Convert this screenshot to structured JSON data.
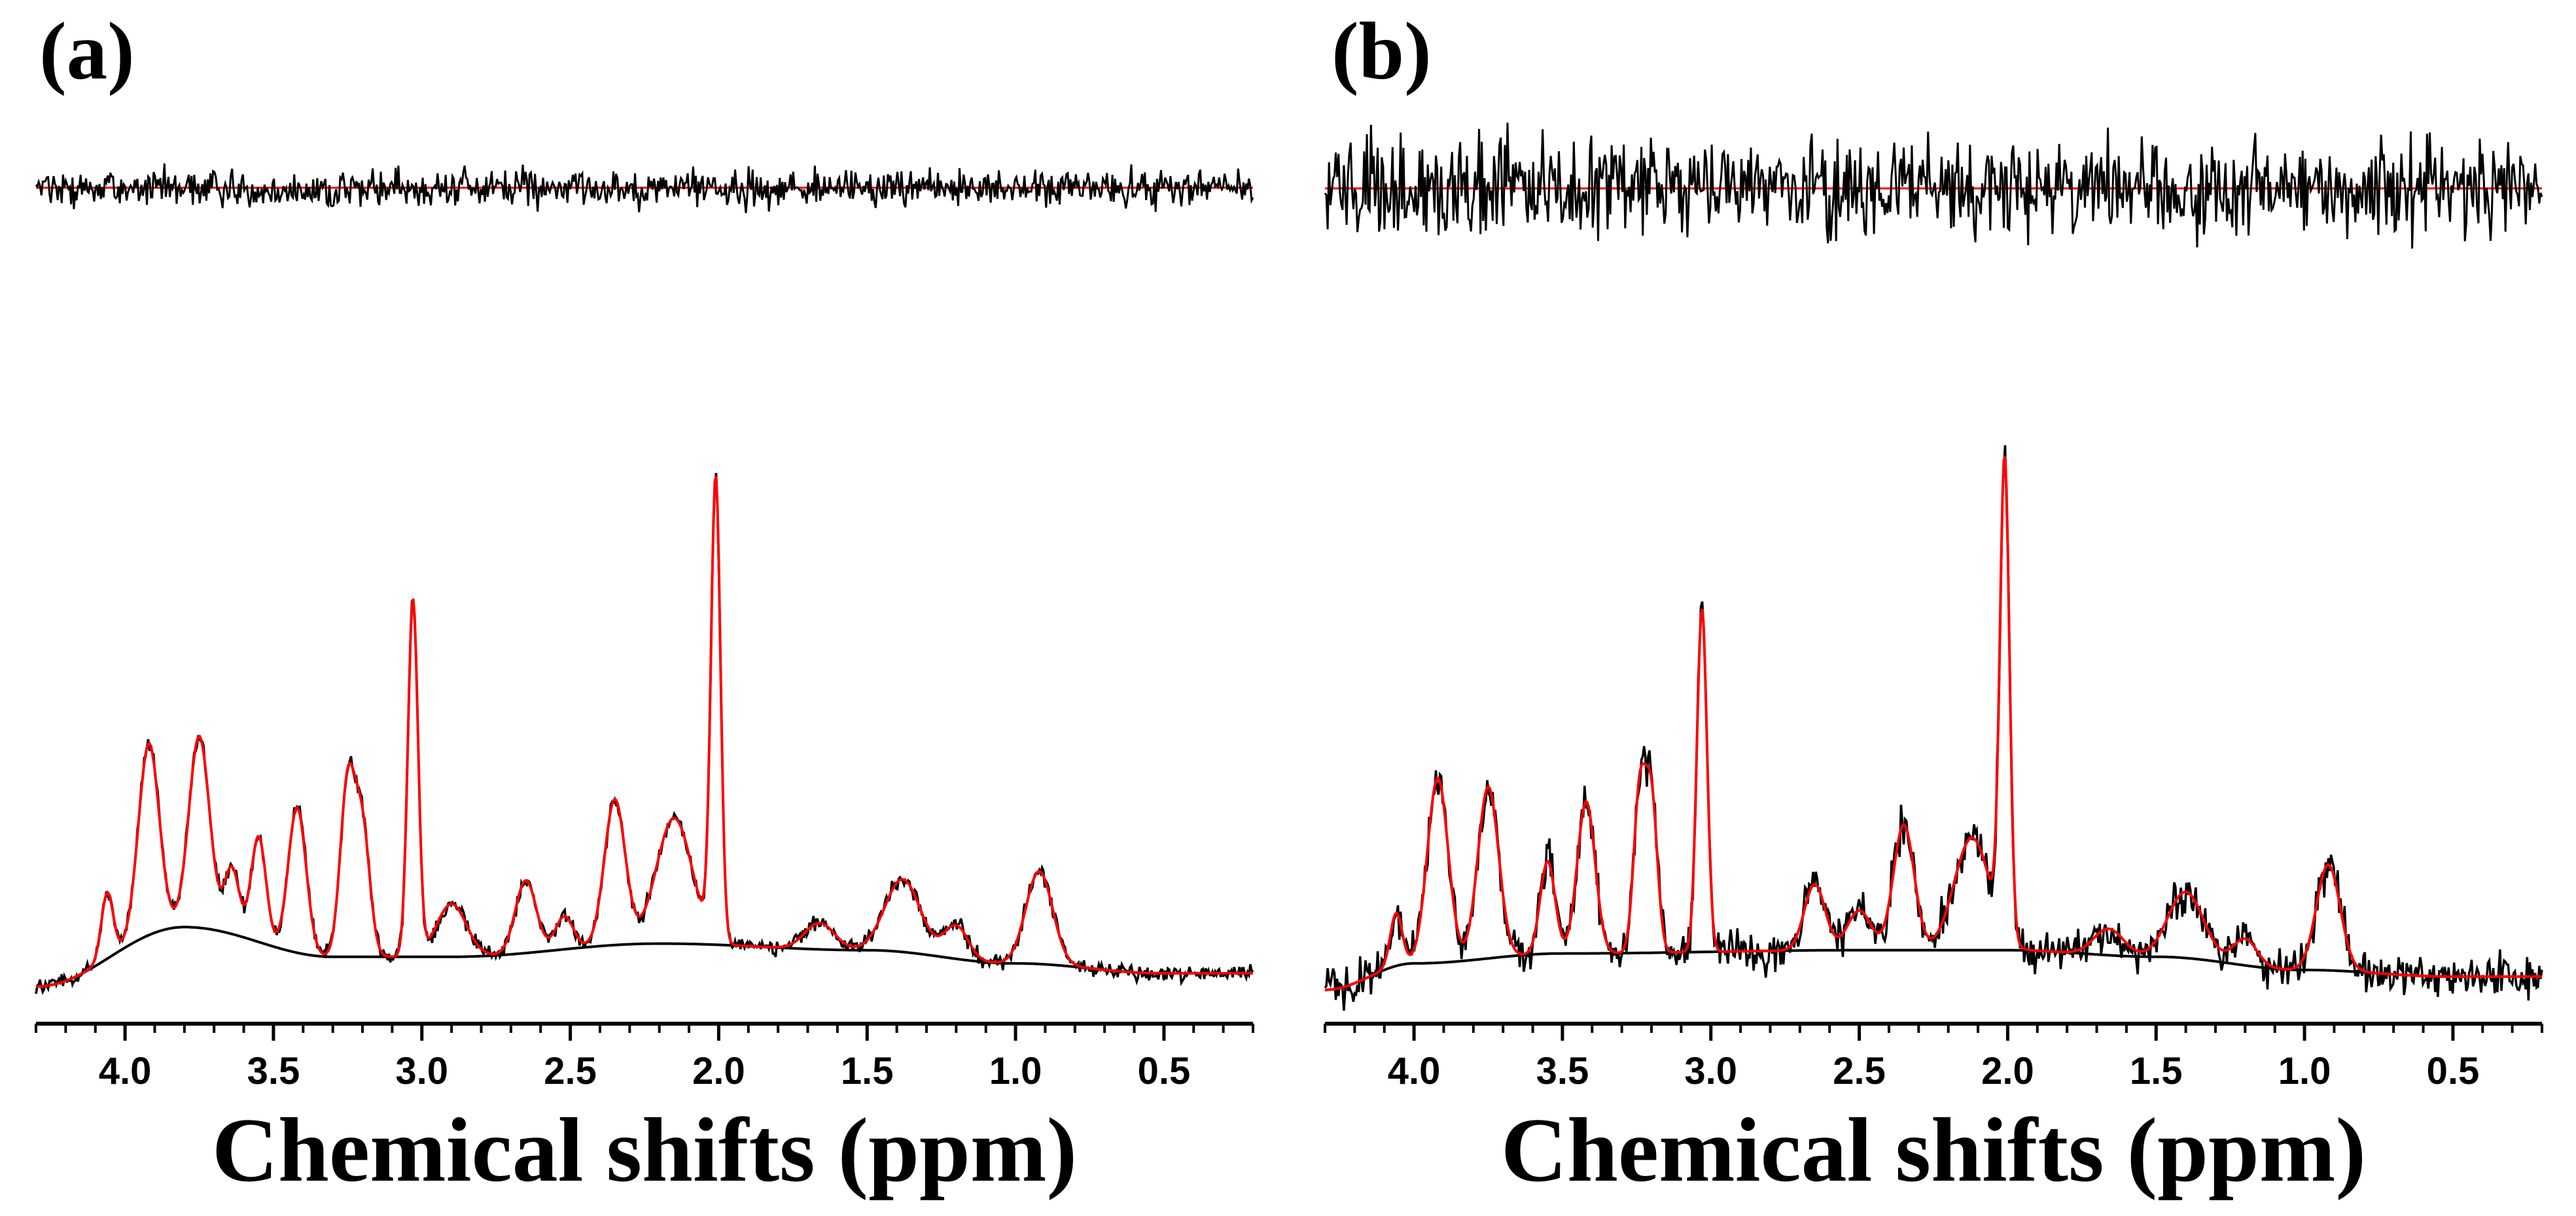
{
  "chart_data": [
    {
      "type": "line",
      "panel_label": "(a)",
      "xlabel": "Chemical shifts (ppm)",
      "ylabel": "",
      "xlim": [
        4.3,
        0.2
      ],
      "x_reversed": true,
      "xticks": [
        4.0,
        3.5,
        3.0,
        2.5,
        2.0,
        1.5,
        1.0,
        0.5
      ],
      "xtick_labels": [
        "4.0",
        "3.5",
        "3.0",
        "2.5",
        "2.0",
        "1.5",
        "1.0",
        "0.5"
      ],
      "noise_level": 0.01,
      "series": [
        {
          "name": "spectrum",
          "color": "#000000",
          "role": "measured",
          "noise": 0.012
        },
        {
          "name": "fit",
          "color": "#ff0000",
          "role": "fit"
        },
        {
          "name": "baseline",
          "color": "#000000",
          "role": "baseline"
        },
        {
          "name": "residual",
          "color": "#000000",
          "role": "residual",
          "noise": 0.018
        },
        {
          "name": "residual zero",
          "color": "#ff0000",
          "role": "residual-zero"
        }
      ],
      "peaks": [
        [
          4.06,
          0.1,
          0.02
        ],
        [
          3.92,
          0.29,
          0.035
        ],
        [
          3.75,
          0.29,
          0.035
        ],
        [
          3.64,
          0.1,
          0.025
        ],
        [
          3.55,
          0.16,
          0.025
        ],
        [
          3.42,
          0.22,
          0.03
        ],
        [
          3.25,
          0.26,
          0.025
        ],
        [
          3.2,
          0.19,
          0.025
        ],
        [
          3.03,
          0.54,
          0.017
        ],
        [
          2.9,
          0.08,
          0.05
        ],
        [
          2.65,
          0.11,
          0.035
        ],
        [
          2.52,
          0.05,
          0.03
        ],
        [
          2.35,
          0.22,
          0.035
        ],
        [
          2.15,
          0.19,
          0.06
        ],
        [
          2.01,
          0.7,
          0.016
        ],
        [
          1.66,
          0.04,
          0.05
        ],
        [
          1.38,
          0.11,
          0.06
        ],
        [
          1.2,
          0.05,
          0.04
        ],
        [
          0.92,
          0.14,
          0.045
        ]
      ],
      "baseline_points": [
        [
          4.3,
          -0.02
        ],
        [
          3.8,
          0.07
        ],
        [
          3.3,
          0.025
        ],
        [
          2.9,
          0.025
        ],
        [
          2.2,
          0.045
        ],
        [
          1.5,
          0.035
        ],
        [
          1.0,
          0.015
        ],
        [
          0.5,
          0.0
        ],
        [
          0.2,
          0.0
        ]
      ]
    },
    {
      "type": "line",
      "panel_label": "(b)",
      "xlabel": "Chemical shifts (ppm)",
      "ylabel": "",
      "xlim": [
        4.3,
        0.2
      ],
      "x_reversed": true,
      "xticks": [
        4.0,
        3.5,
        3.0,
        2.5,
        2.0,
        1.5,
        1.0,
        0.5
      ],
      "xtick_labels": [
        "4.0",
        "3.5",
        "3.0",
        "2.5",
        "2.0",
        "1.5",
        "1.0",
        "0.5"
      ],
      "noise_level": 0.025,
      "series": [
        {
          "name": "spectrum",
          "color": "#000000",
          "role": "measured",
          "noise": 0.03
        },
        {
          "name": "fit",
          "color": "#ff0000",
          "role": "fit"
        },
        {
          "name": "baseline",
          "color": "#000000",
          "role": "baseline"
        },
        {
          "name": "residual",
          "color": "#000000",
          "role": "residual",
          "noise": 0.045
        },
        {
          "name": "residual zero",
          "color": "#ff0000",
          "role": "residual-zero"
        }
      ],
      "peaks": [
        [
          4.06,
          0.08,
          0.02
        ],
        [
          3.92,
          0.28,
          0.035
        ],
        [
          3.75,
          0.26,
          0.035
        ],
        [
          3.55,
          0.14,
          0.025
        ],
        [
          3.42,
          0.23,
          0.03
        ],
        [
          3.24,
          0.24,
          0.02
        ],
        [
          3.2,
          0.23,
          0.02
        ],
        [
          3.03,
          0.52,
          0.017
        ],
        [
          2.65,
          0.1,
          0.035
        ],
        [
          2.5,
          0.06,
          0.04
        ],
        [
          2.35,
          0.19,
          0.035
        ],
        [
          2.12,
          0.17,
          0.06
        ],
        [
          2.01,
          0.72,
          0.016
        ],
        [
          1.66,
          0.04,
          0.05
        ],
        [
          1.4,
          0.1,
          0.06
        ],
        [
          1.2,
          0.04,
          0.04
        ],
        [
          0.92,
          0.16,
          0.04
        ]
      ],
      "baseline_points": [
        [
          4.3,
          -0.02
        ],
        [
          4.0,
          0.02
        ],
        [
          3.5,
          0.035
        ],
        [
          2.5,
          0.04
        ],
        [
          2.0,
          0.04
        ],
        [
          1.5,
          0.03
        ],
        [
          1.0,
          0.01
        ],
        [
          0.5,
          0.0
        ],
        [
          0.2,
          0.0
        ]
      ]
    }
  ]
}
